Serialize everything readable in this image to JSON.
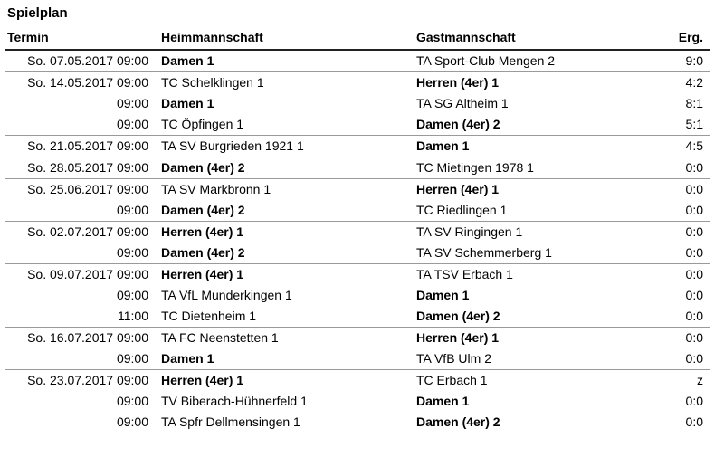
{
  "page": {
    "title": "Spielplan"
  },
  "colors": {
    "text": "#000000",
    "header_rule": "#222222",
    "row_rule": "#9a9a9a",
    "background": "#ffffff"
  },
  "table": {
    "headers": {
      "termin": "Termin",
      "heim": "Heimmannschaft",
      "gast": "Gastmannschaft",
      "erg": "Erg."
    },
    "rows": [
      {
        "termin": "So. 07.05.2017 09:00",
        "heim": "Damen 1",
        "heim_bold": true,
        "gast": "TA Sport-Club Mengen 2",
        "gast_bold": false,
        "erg": "9:0",
        "group_start": true
      },
      {
        "termin": "So. 14.05.2017 09:00",
        "heim": "TC Schelklingen 1",
        "heim_bold": false,
        "gast": "Herren (4er) 1",
        "gast_bold": true,
        "erg": "4:2",
        "group_start": true
      },
      {
        "termin": "09:00",
        "heim": "Damen 1",
        "heim_bold": true,
        "gast": "TA SG Altheim 1",
        "gast_bold": false,
        "erg": "8:1",
        "group_start": false
      },
      {
        "termin": "09:00",
        "heim": "TC Öpfingen 1",
        "heim_bold": false,
        "gast": "Damen (4er) 2",
        "gast_bold": true,
        "erg": "5:1",
        "group_start": false
      },
      {
        "termin": "So. 21.05.2017 09:00",
        "heim": "TA SV Burgrieden 1921 1",
        "heim_bold": false,
        "gast": "Damen 1",
        "gast_bold": true,
        "erg": "4:5",
        "group_start": true
      },
      {
        "termin": "So. 28.05.2017 09:00",
        "heim": "Damen (4er) 2",
        "heim_bold": true,
        "gast": "TC Mietingen 1978 1",
        "gast_bold": false,
        "erg": "0:0",
        "group_start": true
      },
      {
        "termin": "So. 25.06.2017 09:00",
        "heim": "TA SV Markbronn 1",
        "heim_bold": false,
        "gast": "Herren (4er) 1",
        "gast_bold": true,
        "erg": "0:0",
        "group_start": true
      },
      {
        "termin": "09:00",
        "heim": "Damen (4er) 2",
        "heim_bold": true,
        "gast": "TC Riedlingen 1",
        "gast_bold": false,
        "erg": "0:0",
        "group_start": false
      },
      {
        "termin": "So. 02.07.2017 09:00",
        "heim": "Herren (4er) 1",
        "heim_bold": true,
        "gast": "TA SV Ringingen 1",
        "gast_bold": false,
        "erg": "0:0",
        "group_start": true
      },
      {
        "termin": "09:00",
        "heim": "Damen (4er) 2",
        "heim_bold": true,
        "gast": "TA SV Schemmerberg 1",
        "gast_bold": false,
        "erg": "0:0",
        "group_start": false
      },
      {
        "termin": "So. 09.07.2017 09:00",
        "heim": "Herren (4er) 1",
        "heim_bold": true,
        "gast": "TA TSV Erbach 1",
        "gast_bold": false,
        "erg": "0:0",
        "group_start": true
      },
      {
        "termin": "09:00",
        "heim": "TA VfL Munderkingen 1",
        "heim_bold": false,
        "gast": "Damen 1",
        "gast_bold": true,
        "erg": "0:0",
        "group_start": false
      },
      {
        "termin": "11:00",
        "heim": "TC Dietenheim 1",
        "heim_bold": false,
        "gast": "Damen (4er) 2",
        "gast_bold": true,
        "erg": "0:0",
        "group_start": false
      },
      {
        "termin": "So. 16.07.2017 09:00",
        "heim": "TA FC Neenstetten 1",
        "heim_bold": false,
        "gast": "Herren (4er) 1",
        "gast_bold": true,
        "erg": "0:0",
        "group_start": true
      },
      {
        "termin": "09:00",
        "heim": "Damen 1",
        "heim_bold": true,
        "gast": "TA VfB Ulm 2",
        "gast_bold": false,
        "erg": "0:0",
        "group_start": false
      },
      {
        "termin": "So. 23.07.2017 09:00",
        "heim": "Herren (4er) 1",
        "heim_bold": true,
        "gast": "TC Erbach 1",
        "gast_bold": false,
        "erg": "z",
        "group_start": true
      },
      {
        "termin": "09:00",
        "heim": "TV Biberach-Hühnerfeld 1",
        "heim_bold": false,
        "gast": "Damen 1",
        "gast_bold": true,
        "erg": "0:0",
        "group_start": false
      },
      {
        "termin": "09:00",
        "heim": "TA Spfr Dellmensingen 1",
        "heim_bold": false,
        "gast": "Damen (4er) 2",
        "gast_bold": true,
        "erg": "0:0",
        "group_start": false
      }
    ]
  }
}
